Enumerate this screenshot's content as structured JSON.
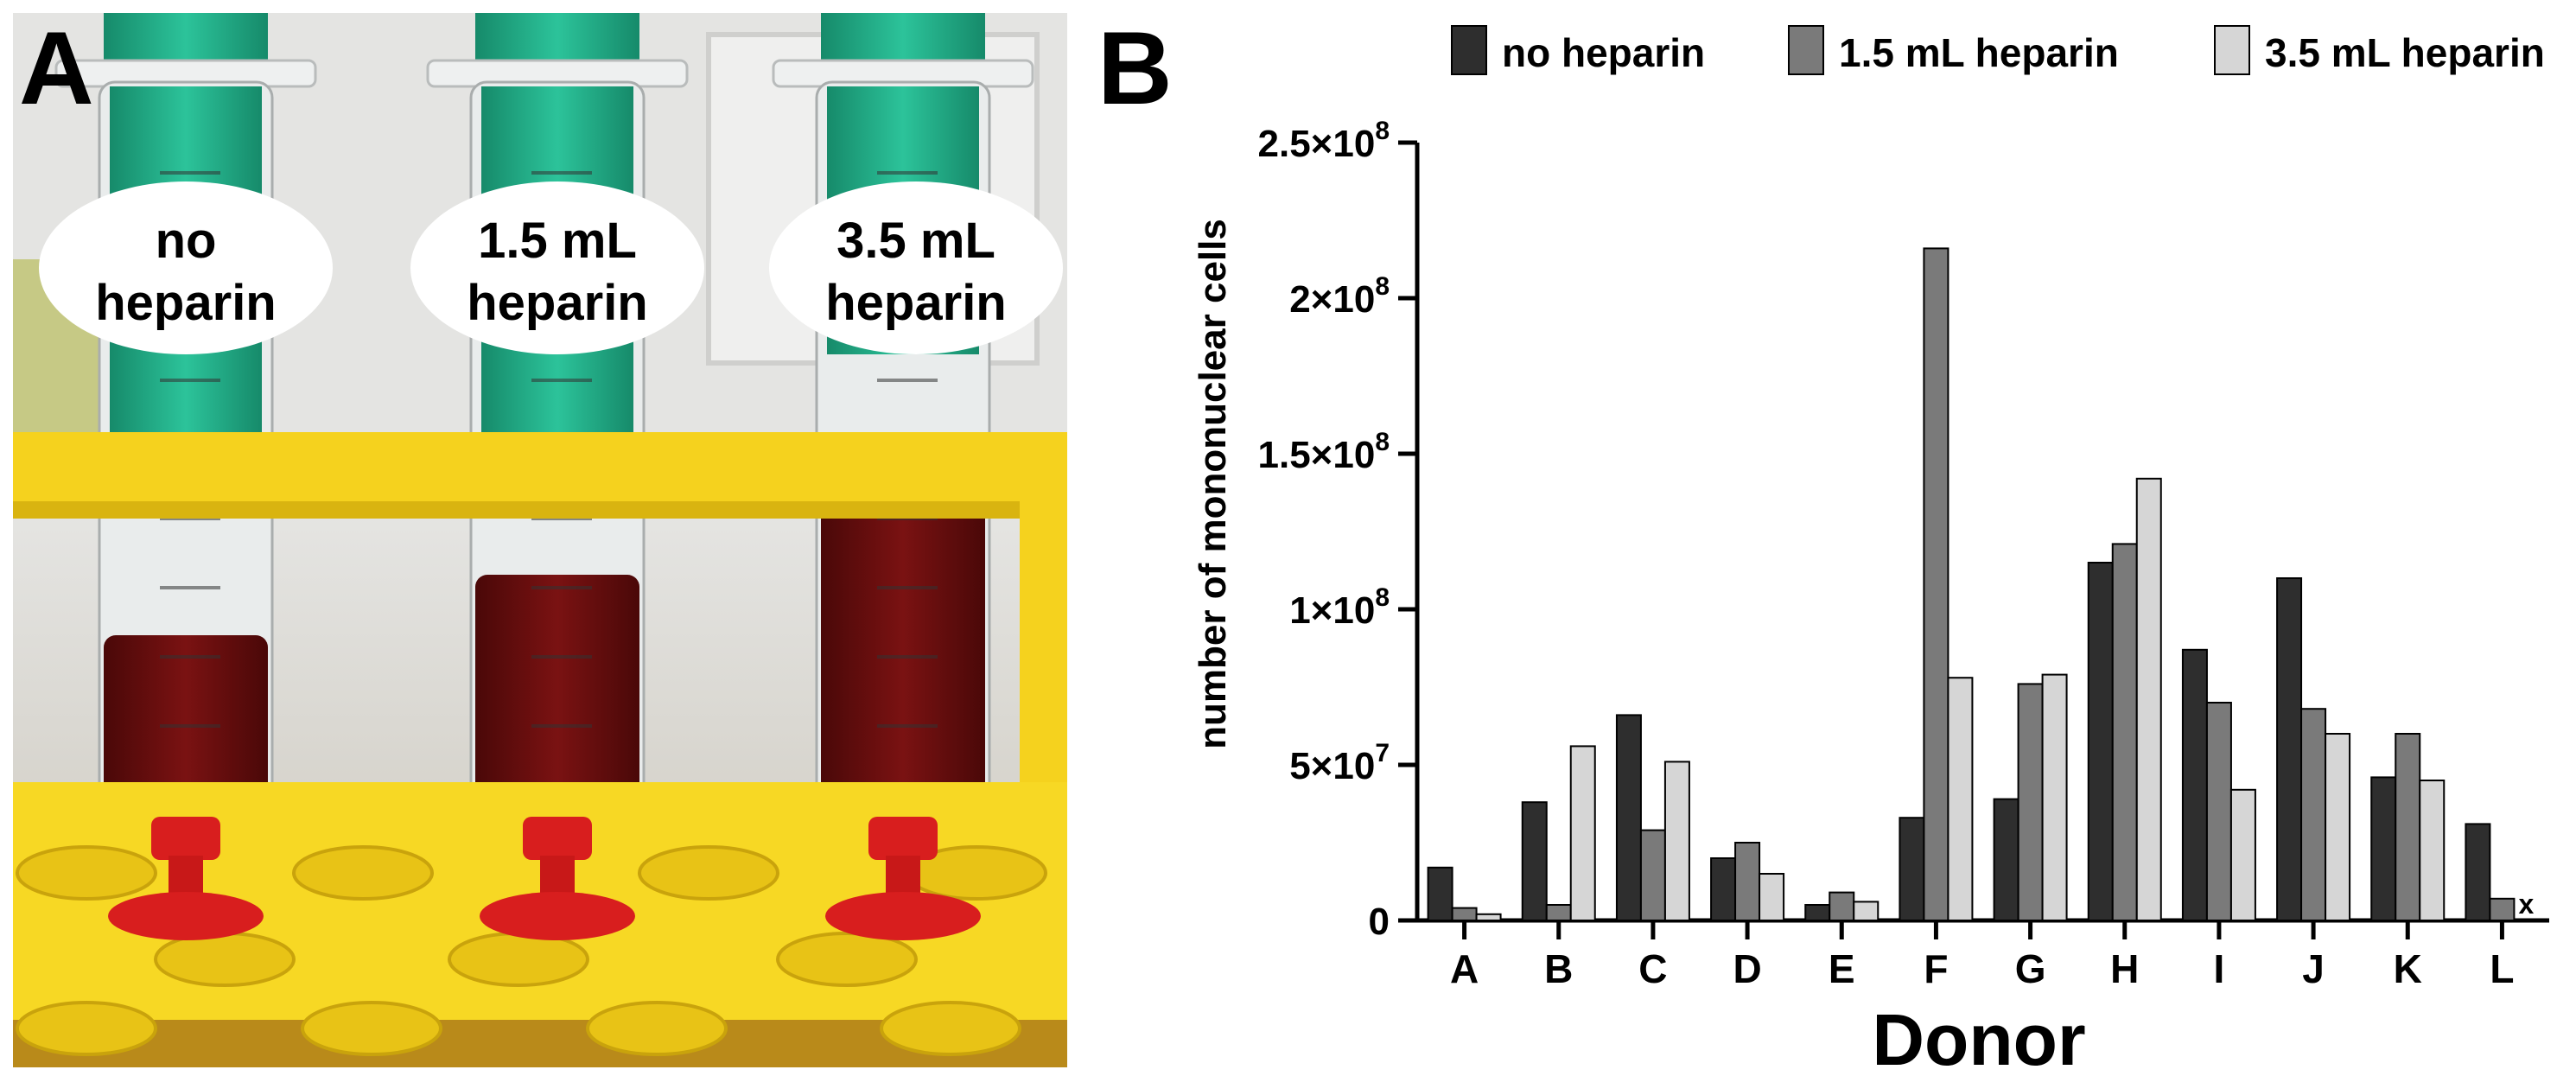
{
  "panel_a": {
    "letter": "A",
    "labels": [
      [
        "no",
        "heparin"
      ],
      [
        "1.5 mL",
        "heparin"
      ],
      [
        "3.5 mL",
        "heparin"
      ]
    ]
  },
  "panel_b": {
    "letter": "B"
  },
  "colors": {
    "no_heparin": "#2e2e2e",
    "heparin_1_5": "#7a7a7a",
    "heparin_3_5": "#d6d6d6",
    "blood": "#6e1010",
    "rack": "#f5d21e",
    "plunger": "#1ea884",
    "tip": "#d81e1e"
  },
  "chart_data": {
    "type": "bar",
    "categories": [
      "A",
      "B",
      "C",
      "D",
      "E",
      "F",
      "G",
      "H",
      "I",
      "J",
      "K",
      "L"
    ],
    "series": [
      {
        "name": "no heparin",
        "values": [
          17000000,
          38000000,
          66000000,
          20000000,
          5000000,
          33000000,
          39000000,
          115000000,
          87000000,
          110000000,
          46000000,
          31000000
        ]
      },
      {
        "name": "1.5 mL heparin",
        "values": [
          4000000,
          5000000,
          29000000,
          25000000,
          9000000,
          216000000,
          76000000,
          121000000,
          70000000,
          68000000,
          60000000,
          7000000
        ]
      },
      {
        "name": "3.5 mL heparin",
        "values": [
          2000000,
          56000000,
          51000000,
          15000000,
          6000000,
          78000000,
          79000000,
          142000000,
          42000000,
          60000000,
          45000000,
          null
        ]
      }
    ],
    "title": "",
    "xlabel": "Donor",
    "ylabel": "number of mononuclear cells",
    "ylim": [
      0,
      250000000
    ],
    "yticks": [
      0,
      50000000,
      100000000,
      150000000,
      200000000,
      250000000
    ],
    "ytick_labels": [
      {
        "base": "0",
        "exp": ""
      },
      {
        "base": "5×10",
        "exp": "7"
      },
      {
        "base": "1×10",
        "exp": "8"
      },
      {
        "base": "1.5×10",
        "exp": "8"
      },
      {
        "base": "2×10",
        "exp": "8"
      },
      {
        "base": "2.5×10",
        "exp": "8"
      }
    ],
    "missing_marker": "x",
    "legend_position": "top"
  }
}
